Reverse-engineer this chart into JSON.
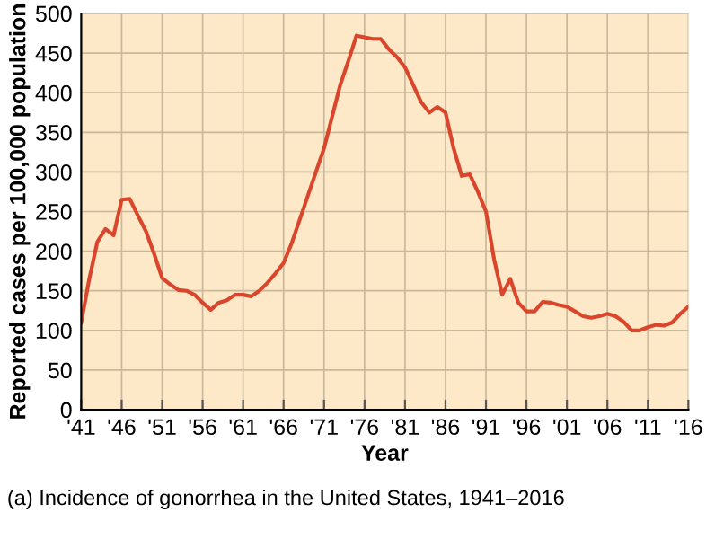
{
  "chart_data": {
    "type": "line",
    "xlabel": "Year",
    "ylabel": "Reported cases per 100,000 population",
    "annotations": [
      "(a) Incidence of gonorrhea in the United States, 1941–2016"
    ],
    "x": [
      1941,
      1942,
      1943,
      1944,
      1945,
      1946,
      1947,
      1948,
      1949,
      1950,
      1951,
      1952,
      1953,
      1954,
      1955,
      1956,
      1957,
      1958,
      1959,
      1960,
      1961,
      1962,
      1963,
      1964,
      1965,
      1966,
      1967,
      1968,
      1969,
      1970,
      1971,
      1972,
      1973,
      1974,
      1975,
      1976,
      1977,
      1978,
      1979,
      1980,
      1981,
      1982,
      1983,
      1984,
      1985,
      1986,
      1987,
      1988,
      1989,
      1990,
      1991,
      1992,
      1993,
      1994,
      1995,
      1996,
      1997,
      1998,
      1999,
      2000,
      2001,
      2002,
      2003,
      2004,
      2005,
      2006,
      2007,
      2008,
      2009,
      2010,
      2011,
      2012,
      2013,
      2014,
      2015,
      2016
    ],
    "series": [
      {
        "color": "#d9462b",
        "values": [
          110,
          165,
          212,
          228,
          220,
          265,
          266,
          245,
          225,
          197,
          166,
          158,
          151,
          150,
          145,
          135,
          126,
          135,
          138,
          145,
          145,
          143,
          150,
          160,
          172,
          185,
          210,
          240,
          270,
          300,
          330,
          370,
          410,
          440,
          472,
          470,
          468,
          468,
          455,
          445,
          432,
          410,
          388,
          375,
          382,
          375,
          330,
          295,
          297,
          275,
          250,
          190,
          145,
          165,
          135,
          124,
          124,
          136,
          135,
          132,
          130,
          124,
          118,
          116,
          118,
          121,
          118,
          111,
          100,
          100,
          104,
          107,
          106,
          110,
          121,
          130
        ]
      }
    ],
    "xlim": [
      1941,
      2016
    ],
    "xticks": [
      {
        "value": 1941,
        "label": "'41"
      },
      {
        "value": 1946,
        "label": "'46"
      },
      {
        "value": 1951,
        "label": "'51"
      },
      {
        "value": 1956,
        "label": "'56"
      },
      {
        "value": 1961,
        "label": "'61"
      },
      {
        "value": 1966,
        "label": "'66"
      },
      {
        "value": 1971,
        "label": "'71"
      },
      {
        "value": 1976,
        "label": "'76"
      },
      {
        "value": 1981,
        "label": "'81"
      },
      {
        "value": 1986,
        "label": "'86"
      },
      {
        "value": 1991,
        "label": "'91"
      },
      {
        "value": 1996,
        "label": "'96"
      },
      {
        "value": 2001,
        "label": "'01"
      },
      {
        "value": 2006,
        "label": "'06"
      },
      {
        "value": 2011,
        "label": "'11"
      },
      {
        "value": 2016,
        "label": "'16"
      }
    ],
    "ylim": [
      0,
      500
    ],
    "yticks": [
      0,
      50,
      100,
      150,
      200,
      250,
      300,
      350,
      400,
      450,
      500
    ],
    "grid": true,
    "legend": false,
    "marker": "none",
    "line_style": "solid"
  }
}
